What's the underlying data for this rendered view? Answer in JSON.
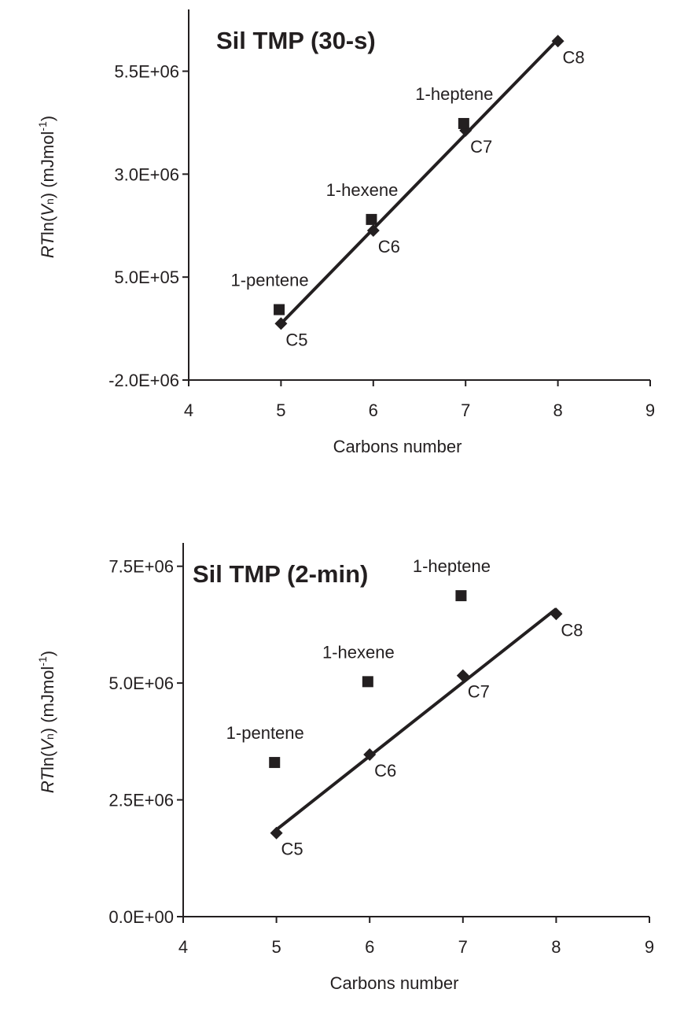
{
  "chart_data": [
    {
      "type": "scatter",
      "title": "Sil TMP (30-s)",
      "xlabel": "Carbons number",
      "ylabel_parts": [
        "RT",
        "ln(",
        "V",
        "n",
        ") (mJmol",
        "-1",
        ")"
      ],
      "xlim": [
        4,
        9
      ],
      "xticks": [
        4,
        5,
        6,
        7,
        8,
        9
      ],
      "ylim": [
        -2000000,
        7000000
      ],
      "yticks": [
        {
          "value": -2000000,
          "label": "-2.0E+06"
        },
        {
          "value": 500000,
          "label": "5.0E+05"
        },
        {
          "value": 3000000,
          "label": "3.0E+06"
        },
        {
          "value": 5500000,
          "label": "5.5E+06"
        }
      ],
      "trendline": true,
      "series": [
        {
          "marker": "diamond",
          "color": "#231f20",
          "x": [
            5,
            6,
            7,
            8
          ],
          "values": [
            -630000,
            1630000,
            4060000,
            6230000
          ],
          "point_labels": [
            "C5",
            "C6",
            "C7",
            "C8"
          ]
        },
        {
          "marker": "square",
          "color": "#231f20",
          "x": [
            4.98,
            5.98,
            6.98
          ],
          "values": [
            -290000,
            1900000,
            4230000
          ],
          "point_labels": [
            "1-pentene",
            "1-hexene",
            "1-heptene"
          ]
        }
      ]
    },
    {
      "type": "scatter",
      "title": "Sil TMP (2-min)",
      "xlabel": "Carbons number",
      "ylabel_parts": [
        "RT",
        "ln(",
        "V",
        "n",
        ") (mJmol",
        "-1",
        ")"
      ],
      "xlim": [
        4,
        9
      ],
      "xticks": [
        4,
        5,
        6,
        7,
        8,
        9
      ],
      "ylim": [
        0,
        8000000
      ],
      "yticks": [
        {
          "value": 0,
          "label": "0.0E+00"
        },
        {
          "value": 2500000,
          "label": "2.5E+06"
        },
        {
          "value": 5000000,
          "label": "5.0E+06"
        },
        {
          "value": 7500000,
          "label": "7.5E+06"
        }
      ],
      "trendline": true,
      "series": [
        {
          "marker": "diamond",
          "color": "#231f20",
          "x": [
            5,
            6,
            7,
            8
          ],
          "values": [
            1790000,
            3470000,
            5160000,
            6480000
          ],
          "point_labels": [
            "C5",
            "C6",
            "C7",
            "C8"
          ]
        },
        {
          "marker": "square",
          "color": "#231f20",
          "x": [
            4.98,
            5.98,
            6.98
          ],
          "values": [
            3300000,
            5030000,
            6870000
          ],
          "point_labels": [
            "1-pentene",
            "1-hexene",
            "1-heptene"
          ]
        }
      ]
    }
  ]
}
